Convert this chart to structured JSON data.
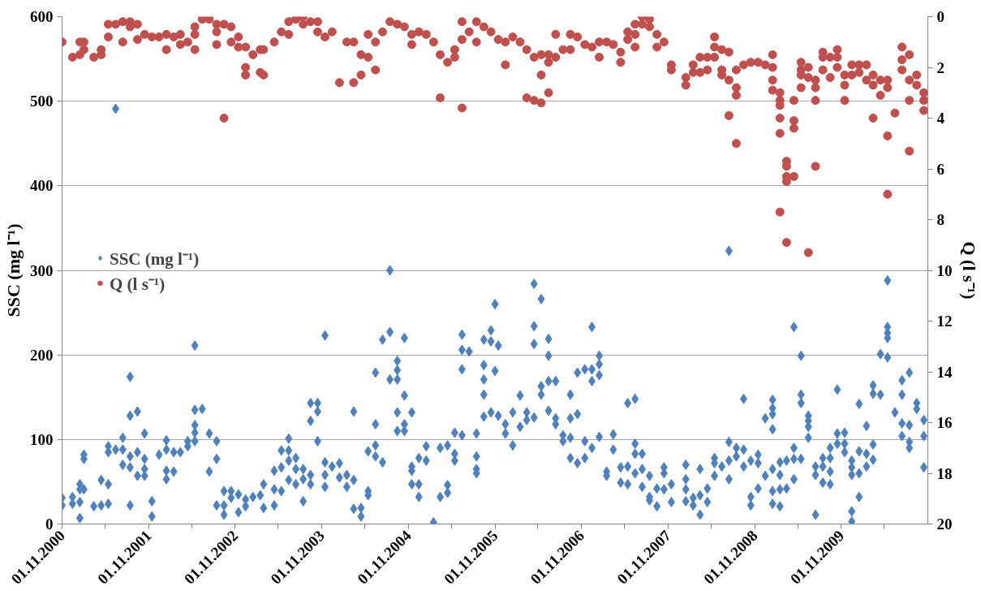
{
  "chart_data": {
    "type": "scatter",
    "ylabel": "SSC (mg l⁻¹)",
    "y2label": "Q (l s⁻¹)",
    "xlim": [
      "2000-11-01",
      "2010-11-01"
    ],
    "xticks": [
      {
        "value": "2000-11-01",
        "label": "01.11.2000"
      },
      {
        "value": "2001-05-01",
        "label": null
      },
      {
        "value": "2001-11-01",
        "label": "01.11.2001"
      },
      {
        "value": "2002-05-01",
        "label": null
      },
      {
        "value": "2002-11-01",
        "label": "01.11.2002"
      },
      {
        "value": "2003-05-01",
        "label": null
      },
      {
        "value": "2003-11-01",
        "label": "01.11.2003"
      },
      {
        "value": "2004-05-01",
        "label": null
      },
      {
        "value": "2004-11-01",
        "label": "01.11.2004"
      },
      {
        "value": "2005-05-01",
        "label": null
      },
      {
        "value": "2005-11-01",
        "label": "01.11.2005"
      },
      {
        "value": "2006-05-01",
        "label": null
      },
      {
        "value": "2006-11-01",
        "label": "01.11.2006"
      },
      {
        "value": "2007-05-01",
        "label": null
      },
      {
        "value": "2007-11-01",
        "label": "01.11.2007"
      },
      {
        "value": "2008-05-01",
        "label": null
      },
      {
        "value": "2008-11-01",
        "label": "01.11.2008"
      },
      {
        "value": "2009-05-01",
        "label": null
      },
      {
        "value": "2009-11-01",
        "label": "01.11.2009"
      },
      {
        "value": "2010-05-01",
        "label": null
      }
    ],
    "ylim": [
      0,
      600
    ],
    "yticks": [
      0,
      100,
      200,
      300,
      400,
      500,
      600
    ],
    "y2lim": [
      20,
      0
    ],
    "y2ticks": [
      0,
      2,
      4,
      6,
      8,
      10,
      12,
      14,
      16,
      18,
      20
    ],
    "grid": "y",
    "legend": "left",
    "series": [
      {
        "name": "SSC (mg l⁻¹)",
        "color": "#4f81bd",
        "marker": "diamond",
        "x": [
          "2000-11-01",
          "2000-11-01",
          "2000-12-15",
          "2000-12-15",
          "2001-01-15",
          "2001-01-15",
          "2001-01-15",
          "2001-01-15",
          "2001-02-01",
          "2001-02-01",
          "2001-02-01",
          "2001-03-15",
          "2001-04-15",
          "2001-04-15",
          "2001-05-15",
          "2001-05-15",
          "2001-05-15",
          "2001-05-15",
          "2001-06-15",
          "2001-06-15",
          "2001-07-15",
          "2001-07-15",
          "2001-07-15",
          "2001-08-15",
          "2001-08-15",
          "2001-08-15",
          "2001-08-15",
          "2001-08-15",
          "2001-09-15",
          "2001-09-15",
          "2001-09-15",
          "2001-10-15",
          "2001-10-15",
          "2001-10-15",
          "2001-10-15",
          "2001-11-15",
          "2001-11-15",
          "2001-12-15",
          "2002-01-15",
          "2002-01-15",
          "2002-01-15",
          "2002-01-15",
          "2002-02-15",
          "2002-02-15",
          "2002-03-15",
          "2002-04-15",
          "2002-04-15",
          "2002-05-15",
          "2002-05-15",
          "2002-05-15",
          "2002-05-15",
          "2002-05-15",
          "2002-06-15",
          "2002-07-15",
          "2002-07-15",
          "2002-08-15",
          "2002-08-15",
          "2002-08-15",
          "2002-09-15",
          "2002-09-15",
          "2002-09-15",
          "2002-10-15",
          "2002-10-15",
          "2002-11-15",
          "2002-11-15",
          "2002-12-15",
          "2002-12-15",
          "2003-01-15",
          "2003-02-15",
          "2003-03-01",
          "2003-03-01",
          "2003-04-15",
          "2003-04-15",
          "2003-04-15",
          "2003-05-15",
          "2003-05-15",
          "2003-05-15",
          "2003-06-15",
          "2003-06-15",
          "2003-06-15",
          "2003-06-15",
          "2003-07-15",
          "2003-07-15",
          "2003-07-15",
          "2003-08-15",
          "2003-08-15",
          "2003-08-15",
          "2003-09-15",
          "2003-09-15",
          "2003-09-15",
          "2003-09-15",
          "2003-10-15",
          "2003-10-15",
          "2003-10-15",
          "2003-11-15",
          "2003-11-15",
          "2003-11-15",
          "2003-11-15",
          "2003-12-15",
          "2004-01-15",
          "2004-01-15",
          "2004-02-15",
          "2004-02-15",
          "2004-03-15",
          "2004-03-15",
          "2004-03-15",
          "2004-04-15",
          "2004-04-15",
          "2004-05-15",
          "2004-05-15",
          "2004-05-15",
          "2004-06-15",
          "2004-06-15",
          "2004-06-15",
          "2004-06-15",
          "2004-07-15",
          "2004-07-15",
          "2004-08-15",
          "2004-08-15",
          "2004-08-15",
          "2004-09-15",
          "2004-09-15",
          "2004-09-15",
          "2004-09-15",
          "2004-09-15",
          "2004-10-15",
          "2004-10-15",
          "2004-10-15",
          "2004-10-15",
          "2004-11-15",
          "2004-11-15",
          "2004-11-15",
          "2004-11-15",
          "2004-12-15",
          "2004-12-15",
          "2004-12-15",
          "2005-01-15",
          "2005-01-15",
          "2005-02-15",
          "2005-03-15",
          "2005-03-15",
          "2005-04-15",
          "2005-04-15",
          "2005-04-15",
          "2005-05-15",
          "2005-05-15",
          "2005-05-15",
          "2005-06-15",
          "2005-06-15",
          "2005-06-15",
          "2005-06-15",
          "2005-07-15",
          "2005-08-15",
          "2005-08-15",
          "2005-08-15",
          "2005-08-15",
          "2005-09-15",
          "2005-09-15",
          "2005-09-15",
          "2005-09-15",
          "2005-09-15",
          "2005-10-15",
          "2005-10-15",
          "2005-10-15",
          "2005-11-01",
          "2005-11-01",
          "2005-11-15",
          "2005-11-15",
          "2005-12-15",
          "2005-12-15",
          "2006-01-15",
          "2006-01-15",
          "2006-02-15",
          "2006-02-15",
          "2006-03-15",
          "2006-03-15",
          "2006-04-15",
          "2006-04-15",
          "2006-04-15",
          "2006-04-15",
          "2006-05-15",
          "2006-05-15",
          "2006-05-15",
          "2006-06-15",
          "2006-06-15",
          "2006-06-15",
          "2006-06-15",
          "2006-07-15",
          "2006-07-15",
          "2006-07-15",
          "2006-08-15",
          "2006-08-15",
          "2006-09-15",
          "2006-09-15",
          "2006-09-15",
          "2006-09-15",
          "2006-10-15",
          "2006-10-15",
          "2006-10-15",
          "2006-11-15",
          "2006-11-15",
          "2006-11-15",
          "2006-12-15",
          "2006-12-15",
          "2006-12-15",
          "2006-12-15",
          "2007-01-15",
          "2007-01-15",
          "2007-01-15",
          "2007-01-15",
          "2007-02-15",
          "2007-02-15",
          "2007-03-15",
          "2007-03-15",
          "2007-04-15",
          "2007-04-15",
          "2007-05-15",
          "2007-05-15",
          "2007-05-15",
          "2007-06-15",
          "2007-06-15",
          "2007-06-15",
          "2007-06-15",
          "2007-07-15",
          "2007-07-15",
          "2007-07-15",
          "2007-08-15",
          "2007-08-15",
          "2007-08-15",
          "2007-09-15",
          "2007-09-15",
          "2007-10-15",
          "2007-10-15",
          "2007-10-15",
          "2007-11-15",
          "2007-11-15",
          "2008-01-15",
          "2008-01-15",
          "2008-01-15",
          "2008-01-15",
          "2008-02-15",
          "2008-02-15",
          "2008-03-15",
          "2008-03-15",
          "2008-03-15",
          "2008-04-15",
          "2008-04-15",
          "2008-05-15",
          "2008-05-15",
          "2008-05-15",
          "2008-06-15",
          "2008-07-15",
          "2008-07-15",
          "2008-07-15",
          "2008-07-15",
          "2008-08-15",
          "2008-08-15",
          "2008-09-15",
          "2008-09-15",
          "2008-09-15",
          "2008-10-15",
          "2008-10-15",
          "2008-10-15",
          "2008-11-15",
          "2008-11-15",
          "2008-11-15",
          "2008-12-15",
          "2008-12-15",
          "2009-01-15",
          "2009-01-15",
          "2009-01-15",
          "2009-01-15",
          "2009-01-15",
          "2009-01-15",
          "2009-01-15",
          "2009-02-15",
          "2009-02-15",
          "2009-02-15",
          "2009-02-15",
          "2009-03-15",
          "2009-03-15",
          "2009-04-15",
          "2009-04-15",
          "2009-04-15",
          "2009-04-15",
          "2009-05-15",
          "2009-05-15",
          "2009-05-15",
          "2009-05-15",
          "2009-06-15",
          "2009-06-15",
          "2009-06-15",
          "2009-06-15",
          "2009-07-15",
          "2009-07-15",
          "2009-07-15",
          "2009-08-15",
          "2009-08-15",
          "2009-08-15",
          "2009-09-15",
          "2009-09-15",
          "2009-09-15",
          "2009-09-15",
          "2009-10-15",
          "2009-10-15",
          "2009-10-15",
          "2009-11-15",
          "2009-11-15",
          "2009-11-15",
          "2009-12-15",
          "2009-12-15",
          "2009-12-15",
          "2009-12-15",
          "2009-12-15",
          "2010-01-15",
          "2010-01-15",
          "2010-01-15",
          "2010-01-15",
          "2010-02-15",
          "2010-02-15",
          "2010-02-15",
          "2010-03-15",
          "2010-03-15",
          "2010-03-15",
          "2010-03-15",
          "2010-04-15",
          "2010-04-15",
          "2010-05-15",
          "2010-05-15",
          "2010-05-15",
          "2010-05-15",
          "2010-05-15",
          "2010-06-15",
          "2010-07-15",
          "2010-07-15",
          "2010-07-15",
          "2010-07-15",
          "2010-08-15",
          "2010-08-15",
          "2010-08-15",
          "2010-08-15",
          "2010-09-15",
          "2010-09-15",
          "2010-10-15",
          "2010-10-15",
          "2010-10-15"
        ],
        "values": [
          31,
          22,
          32,
          24,
          47,
          41,
          26,
          7,
          82,
          77,
          41,
          21,
          52,
          22,
          92,
          85,
          47,
          24,
          88,
          491,
          102,
          88,
          70,
          174,
          128,
          80,
          67,
          22,
          133,
          85,
          57,
          107,
          77,
          65,
          57,
          27,
          9,
          82,
          99,
          88,
          63,
          53,
          85,
          62,
          85,
          98,
          92,
          211,
          135,
          117,
          108,
          98,
          136,
          107,
          62,
          98,
          77,
          22,
          39,
          11,
          22,
          39,
          31,
          35,
          14,
          29,
          21,
          32,
          34,
          47,
          19,
          63,
          41,
          22,
          87,
          67,
          39,
          101,
          87,
          75,
          52,
          78,
          65,
          47,
          65,
          53,
          27,
          143,
          122,
          58,
          47,
          143,
          133,
          98,
          223,
          73,
          58,
          44,
          68,
          72,
          55,
          58,
          44,
          133,
          52,
          18,
          19,
          9,
          86,
          39,
          34,
          179,
          118,
          93,
          80,
          218,
          73,
          300,
          227,
          171,
          193,
          182,
          171,
          132,
          110,
          220,
          152,
          118,
          110,
          132,
          68,
          63,
          47,
          78,
          47,
          32,
          92,
          75,
          2,
          90,
          32,
          93,
          46,
          37,
          108,
          83,
          75,
          224,
          206,
          183,
          105,
          204,
          107,
          80,
          65,
          60,
          218,
          188,
          171,
          153,
          127,
          229,
          216,
          132,
          260,
          181,
          211,
          128,
          118,
          107,
          132,
          93,
          152,
          115,
          132,
          123,
          284,
          234,
          213,
          126,
          266,
          163,
          153,
          219,
          199,
          169,
          134,
          169,
          125,
          118,
          105,
          98,
          153,
          125,
          102,
          78,
          179,
          130,
          72,
          183,
          98,
          78,
          233,
          183,
          169,
          90,
          199,
          189,
          176,
          103,
          62,
          57,
          106,
          88,
          67,
          49,
          143,
          68,
          47,
          148,
          95,
          83,
          60,
          83,
          65,
          44,
          57,
          32,
          28,
          42,
          21,
          67,
          60,
          41,
          47,
          26,
          70,
          53,
          41,
          27,
          31,
          22,
          65,
          34,
          11,
          42,
          26,
          78,
          72,
          57,
          68,
          323,
          97,
          75,
          53,
          90,
          80,
          148,
          88,
          68,
          75,
          32,
          22,
          82,
          72,
          42,
          125,
          57,
          147,
          137,
          130,
          112,
          65,
          39,
          24,
          73,
          58,
          41,
          21,
          75,
          42,
          233,
          90,
          77,
          53,
          199,
          153,
          143,
          77,
          128,
          122,
          115,
          102,
          68,
          58,
          11,
          78,
          68,
          49,
          90,
          78,
          62,
          47,
          159,
          107,
          95,
          108,
          95,
          85,
          75,
          67,
          58,
          15,
          3,
          142,
          86,
          60,
          32,
          116,
          83,
          68,
          164,
          154,
          94,
          76,
          201,
          153,
          288,
          233,
          226,
          220,
          197,
          132,
          170,
          153,
          119,
          104,
          179,
          117,
          97,
          90,
          143,
          136,
          123,
          104,
          67
        ]
      },
      {
        "name": "Q (l s⁻¹)",
        "color": "#c0504d",
        "marker": "circle",
        "axis": "y2",
        "x": [
          "2000-11-01",
          "2000-12-15",
          "2001-01-15",
          "2001-01-15",
          "2001-02-01",
          "2001-02-01",
          "2001-03-15",
          "2001-04-15",
          "2001-04-15",
          "2001-05-15",
          "2001-05-15",
          "2001-06-15",
          "2001-07-15",
          "2001-07-15",
          "2001-08-15",
          "2001-08-15",
          "2001-09-15",
          "2001-09-15",
          "2001-10-15",
          "2001-11-15",
          "2001-12-15",
          "2002-01-15",
          "2002-01-15",
          "2002-02-15",
          "2002-03-15",
          "2002-03-15",
          "2002-04-15",
          "2002-05-15",
          "2002-05-15",
          "2002-05-15",
          "2002-06-15",
          "2002-07-15",
          "2002-08-15",
          "2002-08-15",
          "2002-08-15",
          "2002-09-15",
          "2002-09-15",
          "2002-10-15",
          "2002-10-15",
          "2002-11-15",
          "2002-11-15",
          "2002-12-15",
          "2002-12-15",
          "2002-12-15",
          "2003-01-15",
          "2003-02-15",
          "2003-02-15",
          "2003-03-01",
          "2003-03-01",
          "2003-04-15",
          "2003-05-15",
          "2003-06-15",
          "2003-06-15",
          "2003-07-15",
          "2003-08-15",
          "2003-08-15",
          "2003-09-15",
          "2003-10-15",
          "2003-10-15",
          "2003-11-15",
          "2003-12-15",
          "2004-01-15",
          "2004-02-15",
          "2004-03-15",
          "2004-03-15",
          "2004-04-15",
          "2004-04-15",
          "2004-05-15",
          "2004-05-15",
          "2004-06-15",
          "2004-06-15",
          "2004-07-15",
          "2004-08-15",
          "2004-09-15",
          "2004-10-15",
          "2004-11-15",
          "2004-11-15",
          "2004-12-15",
          "2005-01-15",
          "2005-02-15",
          "2005-03-15",
          "2005-03-15",
          "2005-04-15",
          "2005-05-15",
          "2005-05-15",
          "2005-06-15",
          "2005-06-15",
          "2005-06-15",
          "2005-07-15",
          "2005-08-15",
          "2005-08-15",
          "2005-09-15",
          "2005-10-15",
          "2005-11-15",
          "2005-12-15",
          "2005-12-15",
          "2006-01-15",
          "2006-02-15",
          "2006-03-15",
          "2006-03-15",
          "2006-04-15",
          "2006-04-15",
          "2006-05-15",
          "2006-05-15",
          "2006-05-15",
          "2006-06-15",
          "2006-06-15",
          "2006-06-15",
          "2006-07-15",
          "2006-07-15",
          "2006-08-15",
          "2006-09-15",
          "2006-09-15",
          "2006-10-15",
          "2006-11-15",
          "2006-12-15",
          "2007-01-15",
          "2007-01-15",
          "2007-02-15",
          "2007-03-15",
          "2007-04-15",
          "2007-04-15",
          "2007-05-15",
          "2007-05-15",
          "2007-06-15",
          "2007-06-15",
          "2007-06-15",
          "2007-07-15",
          "2007-07-15",
          "2007-08-15",
          "2007-08-15",
          "2007-09-15",
          "2007-09-15",
          "2007-10-15",
          "2007-11-15",
          "2007-11-15",
          "2008-01-15",
          "2008-01-15",
          "2008-02-15",
          "2008-02-15",
          "2008-03-15",
          "2008-03-15",
          "2008-04-15",
          "2008-04-15",
          "2008-05-15",
          "2008-05-15",
          "2008-05-15",
          "2008-06-15",
          "2008-06-15",
          "2008-06-15",
          "2008-07-15",
          "2008-07-15",
          "2008-07-15",
          "2008-08-15",
          "2008-08-15",
          "2008-08-15",
          "2008-08-15",
          "2008-09-15",
          "2008-10-15",
          "2008-11-15",
          "2008-12-15",
          "2009-01-15",
          "2009-01-15",
          "2009-01-15",
          "2009-01-15",
          "2009-02-15",
          "2009-02-15",
          "2009-02-15",
          "2009-02-15",
          "2009-02-15",
          "2009-02-15",
          "2009-03-15",
          "2009-03-15",
          "2009-03-15",
          "2009-03-15",
          "2009-03-15",
          "2009-04-15",
          "2009-04-15",
          "2009-04-15",
          "2009-04-15",
          "2009-05-15",
          "2009-05-15",
          "2009-05-15",
          "2009-05-15",
          "2009-06-15",
          "2009-06-15",
          "2009-06-15",
          "2009-07-15",
          "2009-07-15",
          "2009-07-15",
          "2009-07-15",
          "2009-08-15",
          "2009-08-15",
          "2009-08-15",
          "2009-09-15",
          "2009-09-15",
          "2009-10-15",
          "2009-10-15",
          "2009-10-15",
          "2009-11-15",
          "2009-11-15",
          "2009-11-15",
          "2009-12-15",
          "2009-12-15",
          "2010-01-15",
          "2010-01-15",
          "2010-02-15",
          "2010-02-15",
          "2010-03-15",
          "2010-03-15",
          "2010-03-15",
          "2010-04-15",
          "2010-04-15",
          "2010-05-15",
          "2010-05-15",
          "2010-05-15",
          "2010-05-15",
          "2010-06-15",
          "2010-07-15",
          "2010-07-15",
          "2010-07-15",
          "2010-08-15",
          "2010-08-15",
          "2010-08-15",
          "2010-08-15",
          "2010-09-15",
          "2010-09-15",
          "2010-10-15",
          "2010-10-15",
          "2010-10-15"
        ],
        "values": [
          1.0,
          1.6,
          1.0,
          1.5,
          1.0,
          1.3,
          1.6,
          1.3,
          1.5,
          0.3,
          0.8,
          0.3,
          0.2,
          1.0,
          0.2,
          0.4,
          0.3,
          0.9,
          0.7,
          0.8,
          0.8,
          0.7,
          1.3,
          0.8,
          0.7,
          1.1,
          1.0,
          0.4,
          0.7,
          1.3,
          0.1,
          0.1,
          0.3,
          0.6,
          1.1,
          0.3,
          4.0,
          0.4,
          1.0,
          0.8,
          1.2,
          1.2,
          2.0,
          2.3,
          1.5,
          1.3,
          2.2,
          1.3,
          2.3,
          1.0,
          0.6,
          0.2,
          0.7,
          0.1,
          0.0,
          0.3,
          0.2,
          0.2,
          0.6,
          0.8,
          0.6,
          2.6,
          1.0,
          2.6,
          1.0,
          1.5,
          2.3,
          0.7,
          1.6,
          1.0,
          2.1,
          0.6,
          0.2,
          0.3,
          0.4,
          0.7,
          1.1,
          0.6,
          0.7,
          1.0,
          1.5,
          3.2,
          1.8,
          1.3,
          1.6,
          0.2,
          0.9,
          3.6,
          0.6,
          0.2,
          1.0,
          0.4,
          0.6,
          0.9,
          1.0,
          1.9,
          0.8,
          1.0,
          1.3,
          3.2,
          1.6,
          3.3,
          1.5,
          2.3,
          3.4,
          1.5,
          1.8,
          3.0,
          0.7,
          1.6,
          1.3,
          0.7,
          1.3,
          0.8,
          1.1,
          1.2,
          1.0,
          1.6,
          1.0,
          1.1,
          1.4,
          1.8,
          0.6,
          0.9,
          0.3,
          0.7,
          1.2,
          0.0,
          0.3,
          0.1,
          0.4,
          0.7,
          1.2,
          1.0,
          1.9,
          2.1,
          2.4,
          2.7,
          1.9,
          2.2,
          1.6,
          2.2,
          1.6,
          2.1,
          0.8,
          1.2,
          1.6,
          1.3,
          2.1,
          2.3,
          1.4,
          2.5,
          3.9,
          2.1,
          2.8,
          3.1,
          5.0,
          1.9,
          1.8,
          1.8,
          1.9,
          1.5,
          2.0,
          2.5,
          2.9,
          3.0,
          3.3,
          3.5,
          4.0,
          4.6,
          7.7,
          5.7,
          5.9,
          6.3,
          6.5,
          8.9,
          3.3,
          4.1,
          4.4,
          6.3,
          1.8,
          2.1,
          2.3,
          2.8,
          2.0,
          2.4,
          9.3,
          2.5,
          2.8,
          3.3,
          5.9,
          1.4,
          1.6,
          2.1,
          1.6,
          2.4,
          1.3,
          1.6,
          2.0,
          2.3,
          2.7,
          3.3,
          1.9,
          2.3,
          1.9,
          2.2,
          1.9,
          2.5,
          2.3,
          2.7,
          4.0,
          2.5,
          3.1,
          2.5,
          2.8,
          4.7,
          7.0,
          3.8,
          1.2,
          1.7,
          2.1,
          1.5,
          2.5,
          3.3,
          5.3,
          2.3,
          2.7,
          3.0,
          3.3,
          3.7
        ]
      }
    ]
  }
}
